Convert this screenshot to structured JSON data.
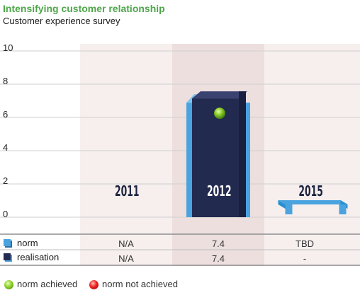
{
  "title": "Intensifying customer relationship",
  "subtitle": "Customer experience survey",
  "chart_data": {
    "type": "bar",
    "categories": [
      "2011",
      "2012",
      "2015"
    ],
    "series": [
      {
        "name": "norm",
        "values": [
          null,
          7.4,
          null
        ]
      },
      {
        "name": "realisation",
        "values": [
          null,
          7.4,
          null
        ]
      }
    ],
    "ylim": [
      0,
      10
    ],
    "yticks": [
      "0",
      "2",
      "4",
      "6",
      "8",
      "10"
    ],
    "status": [
      null,
      "norm achieved",
      null
    ],
    "grid": true
  },
  "table": {
    "rows": [
      {
        "label": "norm",
        "cells": [
          "N/A",
          "7.4",
          "TBD"
        ]
      },
      {
        "label": "realisation",
        "cells": [
          "N/A",
          "7.4",
          "-"
        ]
      }
    ]
  },
  "legend": {
    "achieved": "norm achieved",
    "not_achieved": "norm not achieved"
  },
  "colors": {
    "title": "#4fa64a",
    "norm": "#4aa3df",
    "realisation": "#232a4f",
    "band_light": "#f6efee",
    "band_dark": "#ecdfde",
    "achieved": "#7cc22a",
    "not_achieved": "#e02020"
  }
}
